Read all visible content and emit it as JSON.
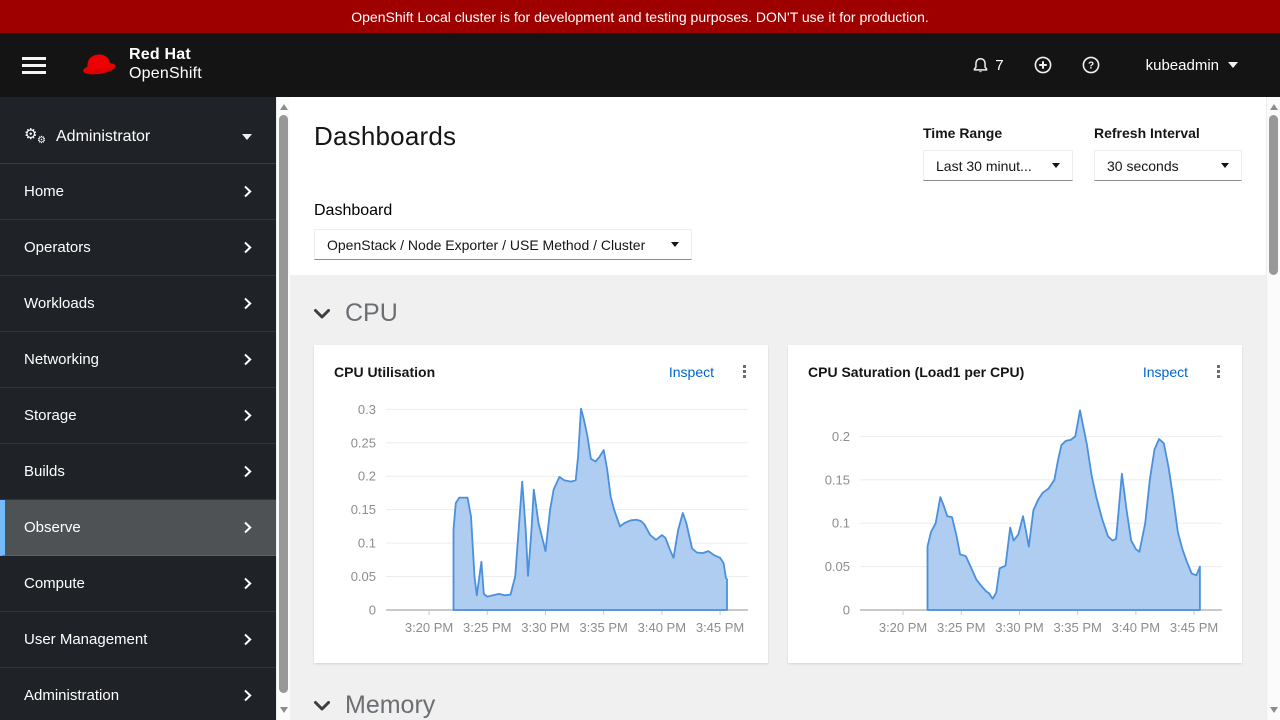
{
  "banner": {
    "text": "OpenShift Local cluster is for development and testing purposes. DON'T use it for production."
  },
  "masthead": {
    "brand": {
      "line1": "Red Hat",
      "line2": "OpenShift"
    },
    "notifications": {
      "count": "7"
    },
    "user": {
      "name": "kubeadmin"
    }
  },
  "sidebar": {
    "perspective": {
      "label": "Administrator"
    },
    "items": [
      {
        "label": "Home",
        "selected": false
      },
      {
        "label": "Operators",
        "selected": false
      },
      {
        "label": "Workloads",
        "selected": false
      },
      {
        "label": "Networking",
        "selected": false
      },
      {
        "label": "Storage",
        "selected": false
      },
      {
        "label": "Builds",
        "selected": false
      },
      {
        "label": "Observe",
        "selected": true
      },
      {
        "label": "Compute",
        "selected": false
      },
      {
        "label": "User Management",
        "selected": false
      },
      {
        "label": "Administration",
        "selected": false
      }
    ]
  },
  "page": {
    "title": "Dashboards",
    "time_range": {
      "label": "Time Range",
      "value": "Last 30 minut..."
    },
    "refresh_interval": {
      "label": "Refresh Interval",
      "value": "30 seconds"
    },
    "dashboard_select": {
      "label": "Dashboard",
      "value": "OpenStack / Node Exporter / USE Method / Cluster"
    },
    "sections": {
      "cpu": "CPU",
      "memory": "Memory"
    }
  },
  "colors": {
    "banner_bg": "#9e0000",
    "selected_indicator": "#73bcf7",
    "link": "#0066cc",
    "area_fill": "#aecdf1",
    "area_stroke": "#4a90dc",
    "grid": "#ededed",
    "axis": "#c9c9c9",
    "tick_text": "#8b8d8f"
  },
  "chart_data": [
    {
      "type": "area",
      "title": "CPU Utilisation",
      "action": "Inspect",
      "x_unit": "minutes after 3:00 PM",
      "x_axis": {
        "xlim": [
          16.3,
          47.4
        ],
        "ticks": [
          20,
          25,
          30,
          35,
          40,
          45
        ],
        "tick_labels": [
          "3:20 PM",
          "3:25 PM",
          "3:30 PM",
          "3:35 PM",
          "3:40 PM",
          "3:45 PM"
        ]
      },
      "y_axis": {
        "ylim": [
          0,
          0.305
        ],
        "ticks": [
          0,
          0.05,
          0.1,
          0.15,
          0.2,
          0.25,
          0.3
        ],
        "tick_labels": [
          "0",
          "0.05",
          "0.1",
          "0.15",
          "0.2",
          "0.25",
          "0.3"
        ]
      },
      "points": [
        [
          22.1,
          0.12
        ],
        [
          22.3,
          0.16
        ],
        [
          22.6,
          0.168
        ],
        [
          23.3,
          0.168
        ],
        [
          23.6,
          0.14
        ],
        [
          23.9,
          0.05
        ],
        [
          24.1,
          0.022
        ],
        [
          24.5,
          0.072
        ],
        [
          24.7,
          0.024
        ],
        [
          25.0,
          0.02
        ],
        [
          25.5,
          0.022
        ],
        [
          26.0,
          0.024
        ],
        [
          26.5,
          0.022
        ],
        [
          27.0,
          0.023
        ],
        [
          27.4,
          0.05
        ],
        [
          28.0,
          0.192
        ],
        [
          28.3,
          0.12
        ],
        [
          28.5,
          0.051
        ],
        [
          28.8,
          0.12
        ],
        [
          29.0,
          0.18
        ],
        [
          29.4,
          0.13
        ],
        [
          30.0,
          0.088
        ],
        [
          30.4,
          0.15
        ],
        [
          30.7,
          0.18
        ],
        [
          31.2,
          0.199
        ],
        [
          31.6,
          0.194
        ],
        [
          32.2,
          0.192
        ],
        [
          32.6,
          0.194
        ],
        [
          32.8,
          0.23
        ],
        [
          33.05,
          0.301
        ],
        [
          33.3,
          0.285
        ],
        [
          33.6,
          0.26
        ],
        [
          33.9,
          0.226
        ],
        [
          34.3,
          0.222
        ],
        [
          34.6,
          0.228
        ],
        [
          35.0,
          0.239
        ],
        [
          35.3,
          0.21
        ],
        [
          35.6,
          0.17
        ],
        [
          35.9,
          0.15
        ],
        [
          36.4,
          0.125
        ],
        [
          36.8,
          0.13
        ],
        [
          37.3,
          0.134
        ],
        [
          37.8,
          0.135
        ],
        [
          38.2,
          0.133
        ],
        [
          38.5,
          0.128
        ],
        [
          39.0,
          0.112
        ],
        [
          39.5,
          0.105
        ],
        [
          40.0,
          0.112
        ],
        [
          40.3,
          0.108
        ],
        [
          40.7,
          0.09
        ],
        [
          41.0,
          0.078
        ],
        [
          41.4,
          0.12
        ],
        [
          41.8,
          0.145
        ],
        [
          42.1,
          0.13
        ],
        [
          42.6,
          0.092
        ],
        [
          43.0,
          0.086
        ],
        [
          43.5,
          0.085
        ],
        [
          44.0,
          0.088
        ],
        [
          44.5,
          0.082
        ],
        [
          45.0,
          0.078
        ],
        [
          45.3,
          0.07
        ],
        [
          45.5,
          0.048
        ],
        [
          45.6,
          0.046
        ]
      ]
    },
    {
      "type": "area",
      "title": "CPU Saturation (Load1 per CPU)",
      "action": "Inspect",
      "x_unit": "minutes after 3:00 PM",
      "x_axis": {
        "xlim": [
          16.3,
          47.4
        ],
        "ticks": [
          20,
          25,
          30,
          35,
          40,
          45
        ],
        "tick_labels": [
          "3:20 PM",
          "3:25 PM",
          "3:30 PM",
          "3:35 PM",
          "3:40 PM",
          "3:45 PM"
        ]
      },
      "y_axis": {
        "ylim": [
          0,
          0.235
        ],
        "ticks": [
          0,
          0.05,
          0.1,
          0.15,
          0.2
        ],
        "tick_labels": [
          "0",
          "0.05",
          "0.1",
          "0.15",
          "0.2"
        ]
      },
      "points": [
        [
          22.1,
          0.073
        ],
        [
          22.4,
          0.09
        ],
        [
          22.8,
          0.1
        ],
        [
          23.2,
          0.13
        ],
        [
          23.5,
          0.12
        ],
        [
          23.8,
          0.108
        ],
        [
          24.2,
          0.107
        ],
        [
          24.6,
          0.085
        ],
        [
          24.9,
          0.064
        ],
        [
          25.4,
          0.062
        ],
        [
          25.8,
          0.05
        ],
        [
          26.3,
          0.035
        ],
        [
          26.7,
          0.028
        ],
        [
          27.1,
          0.022
        ],
        [
          27.4,
          0.019
        ],
        [
          27.7,
          0.013
        ],
        [
          28.0,
          0.02
        ],
        [
          28.3,
          0.048
        ],
        [
          28.8,
          0.051
        ],
        [
          29.2,
          0.095
        ],
        [
          29.5,
          0.08
        ],
        [
          29.9,
          0.087
        ],
        [
          30.3,
          0.108
        ],
        [
          30.6,
          0.088
        ],
        [
          30.8,
          0.073
        ],
        [
          31.2,
          0.115
        ],
        [
          31.6,
          0.127
        ],
        [
          32.0,
          0.135
        ],
        [
          32.5,
          0.14
        ],
        [
          33.0,
          0.15
        ],
        [
          33.3,
          0.172
        ],
        [
          33.6,
          0.19
        ],
        [
          34.0,
          0.195
        ],
        [
          34.4,
          0.196
        ],
        [
          34.8,
          0.2
        ],
        [
          35.2,
          0.23
        ],
        [
          35.5,
          0.21
        ],
        [
          35.8,
          0.19
        ],
        [
          36.2,
          0.155
        ],
        [
          36.6,
          0.13
        ],
        [
          37.1,
          0.105
        ],
        [
          37.6,
          0.085
        ],
        [
          38.0,
          0.08
        ],
        [
          38.3,
          0.082
        ],
        [
          38.8,
          0.157
        ],
        [
          39.2,
          0.115
        ],
        [
          39.6,
          0.08
        ],
        [
          40.0,
          0.07
        ],
        [
          40.3,
          0.067
        ],
        [
          40.8,
          0.1
        ],
        [
          41.2,
          0.15
        ],
        [
          41.6,
          0.185
        ],
        [
          42.0,
          0.197
        ],
        [
          42.4,
          0.192
        ],
        [
          42.8,
          0.165
        ],
        [
          43.2,
          0.13
        ],
        [
          43.6,
          0.09
        ],
        [
          44.0,
          0.07
        ],
        [
          44.4,
          0.055
        ],
        [
          44.8,
          0.042
        ],
        [
          45.2,
          0.04
        ],
        [
          45.5,
          0.05
        ]
      ]
    }
  ]
}
